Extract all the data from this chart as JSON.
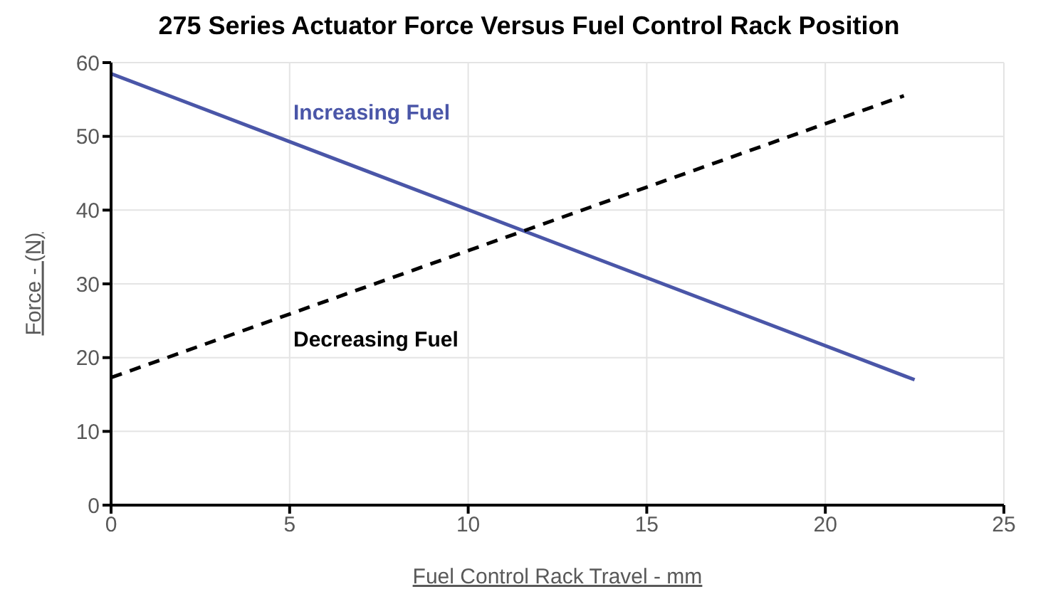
{
  "chart_data": {
    "type": "line",
    "title": "275 Series Actuator Force Versus Fuel Control Rack Position",
    "xlabel": "Fuel Control Rack Travel - mm",
    "ylabel": "Force - (N)",
    "xlim": [
      0,
      25
    ],
    "xticks": [
      0,
      5,
      10,
      15,
      20,
      25
    ],
    "ylim": [
      0,
      60
    ],
    "yticks": [
      0,
      10,
      20,
      30,
      40,
      50,
      60
    ],
    "grid": true,
    "marker": "none",
    "series": [
      {
        "name": "Increasing Fuel",
        "color": "#4a56a8",
        "line_style": "solid",
        "x": [
          0,
          22.5
        ],
        "values": [
          58.5,
          17
        ]
      },
      {
        "name": "Decreasing Fuel",
        "color": "#000000",
        "line_style": "dashed",
        "x": [
          0,
          22.2
        ],
        "values": [
          17.3,
          55.5
        ]
      }
    ]
  }
}
